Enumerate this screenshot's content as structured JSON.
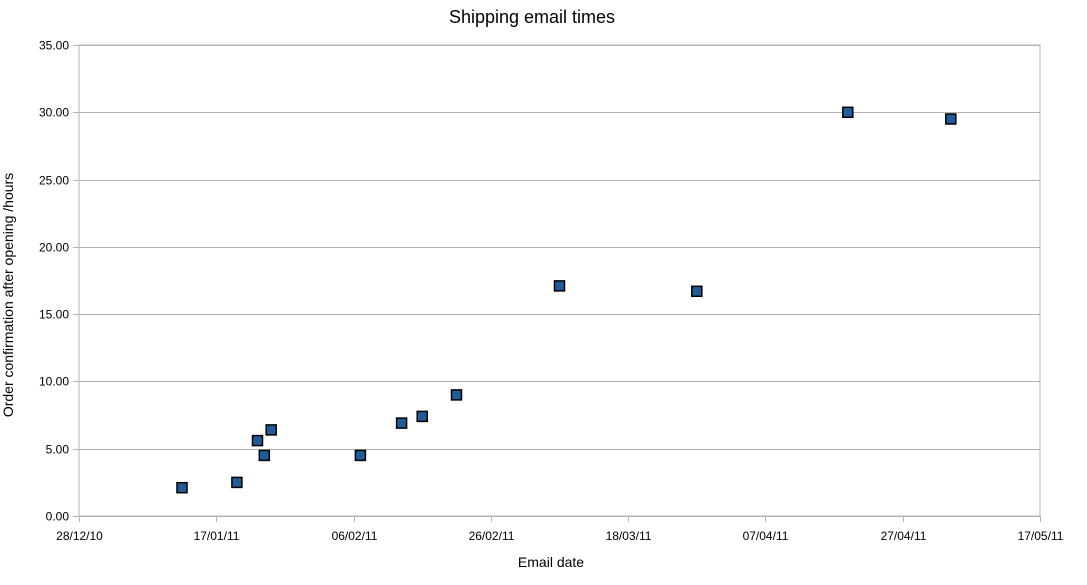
{
  "chart_data": {
    "type": "scatter",
    "title": "Shipping email times",
    "xlabel": "Email date",
    "ylabel": "Order confirmation after opening /hours",
    "x_is_date": true,
    "xlim": [
      "2010-12-28",
      "2011-05-17"
    ],
    "ylim": [
      0,
      35
    ],
    "x_ticks": [
      {
        "date": "2010-12-28",
        "label": "28/12/10"
      },
      {
        "date": "2011-01-17",
        "label": "17/01/11"
      },
      {
        "date": "2011-02-06",
        "label": "06/02/11"
      },
      {
        "date": "2011-02-26",
        "label": "26/02/11"
      },
      {
        "date": "2011-03-18",
        "label": "18/03/11"
      },
      {
        "date": "2011-04-07",
        "label": "07/04/11"
      },
      {
        "date": "2011-04-27",
        "label": "27/04/11"
      },
      {
        "date": "2011-05-17",
        "label": "17/05/11"
      }
    ],
    "y_ticks": [
      {
        "value": 0,
        "label": "0.00"
      },
      {
        "value": 5,
        "label": "5.00"
      },
      {
        "value": 10,
        "label": "10.00"
      },
      {
        "value": 15,
        "label": "15.00"
      },
      {
        "value": 20,
        "label": "20.00"
      },
      {
        "value": 25,
        "label": "25.00"
      },
      {
        "value": 30,
        "label": "30.00"
      },
      {
        "value": 35,
        "label": "35.00"
      }
    ],
    "grid": true,
    "series": [
      {
        "color": "#1f5c99",
        "points": [
          {
            "x": "2011-01-12",
            "y": 2.1
          },
          {
            "x": "2011-01-20",
            "y": 2.5
          },
          {
            "x": "2011-01-23",
            "y": 5.6
          },
          {
            "x": "2011-01-24",
            "y": 4.5
          },
          {
            "x": "2011-01-25",
            "y": 6.4
          },
          {
            "x": "2011-02-07",
            "y": 4.5
          },
          {
            "x": "2011-02-13",
            "y": 6.9
          },
          {
            "x": "2011-02-16",
            "y": 7.4
          },
          {
            "x": "2011-02-21",
            "y": 9.0
          },
          {
            "x": "2011-03-08",
            "y": 17.1
          },
          {
            "x": "2011-03-28",
            "y": 16.7
          },
          {
            "x": "2011-04-19",
            "y": 30.0
          },
          {
            "x": "2011-05-04",
            "y": 29.5
          }
        ]
      }
    ]
  }
}
